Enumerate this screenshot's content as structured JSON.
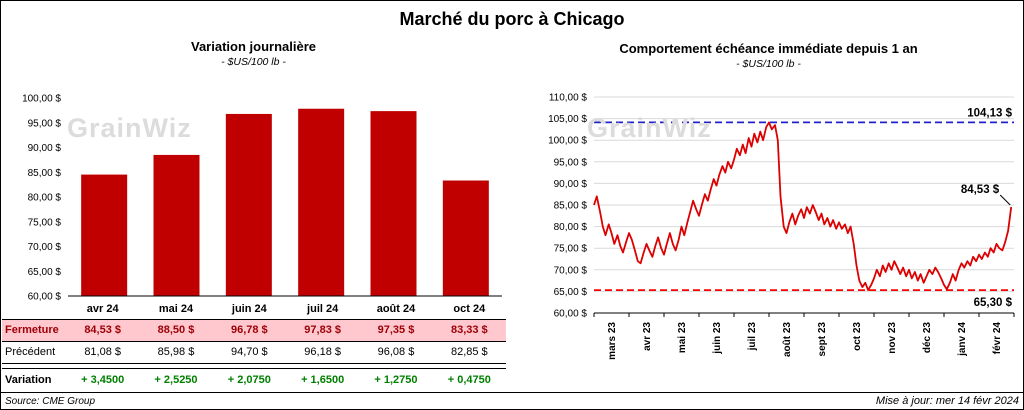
{
  "page": {
    "title": "Marché du porc à Chicago",
    "source": "Source: CME Group",
    "updated": "Mise à jour: mer 14 févr 2024",
    "watermark": "GrainWiz"
  },
  "colors": {
    "bar": "#C00000",
    "line": "#DD0000",
    "max_line": "#2222CC",
    "min_line": "#FF0000",
    "grid": "#D9D9D9",
    "closing_row_bg": "#FFC7CE",
    "closing_row_text": "#9C0006",
    "variation_text": "#008000"
  },
  "table": {
    "rows": [
      {
        "label": "Fermeture",
        "values": [
          "84,53 $",
          "88,50 $",
          "96,78 $",
          "97,83 $",
          "97,35 $",
          "83,33 $"
        ]
      },
      {
        "label": "Précédent",
        "values": [
          "81,08 $",
          "85,98 $",
          "94,70 $",
          "96,18 $",
          "96,08 $",
          "82,85 $"
        ]
      },
      {
        "label": "Variation",
        "values": [
          "+ 3,4500",
          "+ 2,5250",
          "+ 2,0750",
          "+ 1,6500",
          "+ 1,2750",
          "+ 0,4750"
        ]
      }
    ]
  },
  "chart_data": [
    {
      "type": "bar",
      "title": "Variation journalière",
      "subtitle": "- $US/100 lb -",
      "categories": [
        "avr 24",
        "mai 24",
        "juin 24",
        "juil 24",
        "août 24",
        "oct 24"
      ],
      "values": [
        84.53,
        88.5,
        96.78,
        97.83,
        97.35,
        83.33
      ],
      "ylim": [
        60,
        100
      ],
      "ytick_step": 5,
      "ytick_labels": [
        "100,00 $",
        "95,00 $",
        "90,00 $",
        "85,00 $",
        "80,00 $",
        "75,00 $",
        "70,00 $",
        "65,00 $",
        "60,00 $"
      ],
      "grid": false
    },
    {
      "type": "line",
      "title": "Comportement échéance immédiate depuis 1 an",
      "subtitle": "- $US/100 lb -",
      "x_labels": [
        "mars 23",
        "avr 23",
        "mai 23",
        "juin 23",
        "juil 23",
        "août 23",
        "sept 23",
        "oct 23",
        "nov 23",
        "déc 23",
        "janv 24",
        "févr 24"
      ],
      "ylim": [
        60,
        110
      ],
      "ytick_step": 5,
      "ytick_labels": [
        "110,00 $",
        "105,00 $",
        "100,00 $",
        "95,00 $",
        "90,00 $",
        "85,00 $",
        "80,00 $",
        "75,00 $",
        "70,00 $",
        "65,00 $",
        "60,00 $"
      ],
      "grid": true,
      "max_line": {
        "value": 104.13,
        "label": "104,13 $"
      },
      "min_line": {
        "value": 65.3,
        "label": "65,30 $"
      },
      "last_label": "84,53 $",
      "points": [
        [
          0.0,
          85.0
        ],
        [
          0.08,
          87.0
        ],
        [
          0.17,
          83.5
        ],
        [
          0.25,
          80.0
        ],
        [
          0.33,
          78.0
        ],
        [
          0.42,
          80.5
        ],
        [
          0.5,
          78.5
        ],
        [
          0.58,
          76.0
        ],
        [
          0.67,
          78.0
        ],
        [
          0.75,
          75.5
        ],
        [
          0.83,
          74.0
        ],
        [
          0.92,
          76.5
        ],
        [
          1.0,
          78.5
        ],
        [
          1.08,
          77.0
        ],
        [
          1.17,
          74.5
        ],
        [
          1.25,
          72.0
        ],
        [
          1.33,
          71.5
        ],
        [
          1.42,
          74.0
        ],
        [
          1.5,
          76.0
        ],
        [
          1.58,
          74.5
        ],
        [
          1.67,
          73.0
        ],
        [
          1.75,
          75.5
        ],
        [
          1.83,
          77.5
        ],
        [
          1.92,
          75.0
        ],
        [
          2.0,
          73.5
        ],
        [
          2.08,
          76.0
        ],
        [
          2.17,
          78.5
        ],
        [
          2.25,
          76.0
        ],
        [
          2.33,
          74.5
        ],
        [
          2.42,
          77.0
        ],
        [
          2.5,
          80.0
        ],
        [
          2.58,
          78.0
        ],
        [
          2.67,
          81.0
        ],
        [
          2.75,
          83.5
        ],
        [
          2.83,
          86.0
        ],
        [
          2.92,
          84.0
        ],
        [
          3.0,
          82.5
        ],
        [
          3.08,
          85.0
        ],
        [
          3.17,
          87.5
        ],
        [
          3.25,
          86.0
        ],
        [
          3.33,
          88.5
        ],
        [
          3.42,
          91.0
        ],
        [
          3.5,
          89.5
        ],
        [
          3.58,
          92.0
        ],
        [
          3.67,
          94.0
        ],
        [
          3.75,
          92.5
        ],
        [
          3.83,
          95.0
        ],
        [
          3.92,
          93.5
        ],
        [
          4.0,
          95.5
        ],
        [
          4.08,
          98.0
        ],
        [
          4.17,
          96.5
        ],
        [
          4.25,
          99.0
        ],
        [
          4.33,
          97.0
        ],
        [
          4.42,
          100.5
        ],
        [
          4.5,
          98.5
        ],
        [
          4.58,
          101.5
        ],
        [
          4.67,
          99.5
        ],
        [
          4.75,
          102.0
        ],
        [
          4.83,
          100.0
        ],
        [
          4.92,
          103.0
        ],
        [
          5.0,
          104.13
        ],
        [
          5.08,
          102.5
        ],
        [
          5.17,
          103.5
        ],
        [
          5.25,
          100.0
        ],
        [
          5.33,
          87.0
        ],
        [
          5.42,
          80.0
        ],
        [
          5.5,
          78.5
        ],
        [
          5.58,
          81.0
        ],
        [
          5.67,
          83.0
        ],
        [
          5.75,
          80.5
        ],
        [
          5.83,
          82.5
        ],
        [
          5.92,
          84.0
        ],
        [
          6.0,
          82.0
        ],
        [
          6.08,
          84.5
        ],
        [
          6.17,
          83.0
        ],
        [
          6.25,
          85.0
        ],
        [
          6.33,
          83.5
        ],
        [
          6.42,
          81.5
        ],
        [
          6.5,
          83.0
        ],
        [
          6.58,
          80.5
        ],
        [
          6.67,
          82.0
        ],
        [
          6.75,
          80.0
        ],
        [
          6.83,
          81.5
        ],
        [
          6.92,
          79.5
        ],
        [
          7.0,
          81.0
        ],
        [
          7.08,
          79.5
        ],
        [
          7.17,
          80.5
        ],
        [
          7.25,
          78.5
        ],
        [
          7.33,
          80.0
        ],
        [
          7.42,
          76.0
        ],
        [
          7.5,
          71.0
        ],
        [
          7.58,
          67.5
        ],
        [
          7.67,
          66.0
        ],
        [
          7.75,
          67.0
        ],
        [
          7.83,
          65.3
        ],
        [
          7.92,
          66.5
        ],
        [
          8.0,
          68.0
        ],
        [
          8.08,
          70.0
        ],
        [
          8.17,
          68.5
        ],
        [
          8.25,
          71.0
        ],
        [
          8.33,
          69.5
        ],
        [
          8.42,
          71.5
        ],
        [
          8.5,
          70.0
        ],
        [
          8.58,
          72.0
        ],
        [
          8.67,
          70.5
        ],
        [
          8.75,
          69.0
        ],
        [
          8.83,
          70.5
        ],
        [
          8.92,
          68.5
        ],
        [
          9.0,
          70.0
        ],
        [
          9.08,
          68.0
        ],
        [
          9.17,
          69.5
        ],
        [
          9.25,
          67.5
        ],
        [
          9.33,
          69.0
        ],
        [
          9.42,
          67.0
        ],
        [
          9.5,
          68.5
        ],
        [
          9.58,
          70.0
        ],
        [
          9.67,
          69.0
        ],
        [
          9.75,
          70.5
        ],
        [
          9.83,
          69.5
        ],
        [
          9.92,
          68.0
        ],
        [
          10.0,
          66.5
        ],
        [
          10.08,
          65.5
        ],
        [
          10.17,
          67.0
        ],
        [
          10.25,
          69.0
        ],
        [
          10.33,
          67.5
        ],
        [
          10.42,
          70.0
        ],
        [
          10.5,
          71.5
        ],
        [
          10.58,
          70.5
        ],
        [
          10.67,
          72.0
        ],
        [
          10.75,
          71.0
        ],
        [
          10.83,
          73.0
        ],
        [
          10.92,
          72.0
        ],
        [
          11.0,
          73.5
        ],
        [
          11.08,
          72.5
        ],
        [
          11.17,
          74.0
        ],
        [
          11.25,
          73.0
        ],
        [
          11.33,
          75.0
        ],
        [
          11.42,
          74.0
        ],
        [
          11.5,
          76.0
        ],
        [
          11.58,
          75.0
        ],
        [
          11.67,
          74.5
        ],
        [
          11.75,
          76.5
        ],
        [
          11.83,
          79.0
        ],
        [
          11.92,
          84.53
        ]
      ]
    }
  ]
}
